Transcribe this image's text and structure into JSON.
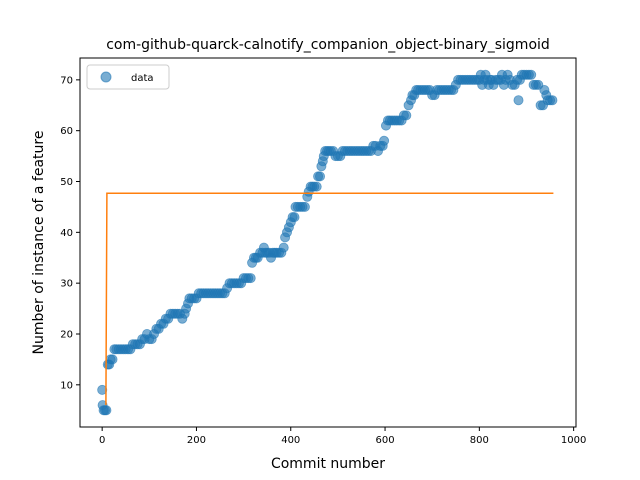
{
  "chart_data": {
    "type": "scatter",
    "title": "com-github-quarck-calnotify_companion_object-binary_sigmoid",
    "xlabel": "Commit number",
    "ylabel": "Number of instance of a feature",
    "xlim": [
      -47,
      1005
    ],
    "ylim": [
      1.7,
      74.3
    ],
    "xticks": [
      0,
      200,
      400,
      600,
      800,
      1000
    ],
    "yticks": [
      10,
      20,
      30,
      40,
      50,
      60,
      70
    ],
    "grid": false,
    "legend_position": "top-left",
    "series": [
      {
        "name": "data",
        "kind": "scatter",
        "color": "#1f77b4",
        "alpha": 0.6,
        "points": [
          [
            0,
            9
          ],
          [
            1,
            6
          ],
          [
            3,
            5
          ],
          [
            6,
            5
          ],
          [
            9,
            5
          ],
          [
            12,
            14
          ],
          [
            15,
            14
          ],
          [
            18,
            15
          ],
          [
            22,
            15
          ],
          [
            26,
            17
          ],
          [
            30,
            17
          ],
          [
            35,
            17
          ],
          [
            40,
            17
          ],
          [
            45,
            17
          ],
          [
            50,
            17
          ],
          [
            55,
            17
          ],
          [
            60,
            17
          ],
          [
            65,
            18
          ],
          [
            70,
            18
          ],
          [
            75,
            18
          ],
          [
            80,
            18
          ],
          [
            85,
            19
          ],
          [
            90,
            19
          ],
          [
            95,
            20
          ],
          [
            100,
            19
          ],
          [
            105,
            19
          ],
          [
            110,
            20
          ],
          [
            115,
            21
          ],
          [
            120,
            21
          ],
          [
            125,
            22
          ],
          [
            130,
            22
          ],
          [
            135,
            23
          ],
          [
            140,
            23
          ],
          [
            145,
            24
          ],
          [
            150,
            24
          ],
          [
            155,
            24
          ],
          [
            160,
            24
          ],
          [
            165,
            24
          ],
          [
            170,
            23
          ],
          [
            175,
            24
          ],
          [
            178,
            25
          ],
          [
            182,
            26
          ],
          [
            185,
            27
          ],
          [
            190,
            27
          ],
          [
            195,
            27
          ],
          [
            200,
            27
          ],
          [
            205,
            28
          ],
          [
            210,
            28
          ],
          [
            215,
            28
          ],
          [
            220,
            28
          ],
          [
            225,
            28
          ],
          [
            230,
            28
          ],
          [
            235,
            28
          ],
          [
            240,
            28
          ],
          [
            245,
            28
          ],
          [
            250,
            28
          ],
          [
            255,
            28
          ],
          [
            260,
            28
          ],
          [
            265,
            29
          ],
          [
            270,
            30
          ],
          [
            275,
            30
          ],
          [
            280,
            30
          ],
          [
            285,
            30
          ],
          [
            290,
            30
          ],
          [
            295,
            30
          ],
          [
            300,
            31
          ],
          [
            305,
            31
          ],
          [
            310,
            31
          ],
          [
            315,
            31
          ],
          [
            318,
            34
          ],
          [
            322,
            35
          ],
          [
            326,
            35
          ],
          [
            330,
            35
          ],
          [
            335,
            36
          ],
          [
            340,
            36
          ],
          [
            343,
            37
          ],
          [
            346,
            36
          ],
          [
            350,
            36
          ],
          [
            355,
            36
          ],
          [
            358,
            35
          ],
          [
            362,
            36
          ],
          [
            366,
            36
          ],
          [
            370,
            36
          ],
          [
            375,
            36
          ],
          [
            380,
            36
          ],
          [
            385,
            37
          ],
          [
            388,
            39
          ],
          [
            392,
            40
          ],
          [
            396,
            41
          ],
          [
            400,
            42
          ],
          [
            404,
            43
          ],
          [
            408,
            43
          ],
          [
            410,
            45
          ],
          [
            415,
            45
          ],
          [
            420,
            45
          ],
          [
            425,
            45
          ],
          [
            430,
            45
          ],
          [
            435,
            47
          ],
          [
            438,
            48
          ],
          [
            442,
            49
          ],
          [
            446,
            49
          ],
          [
            450,
            49
          ],
          [
            455,
            49
          ],
          [
            458,
            51
          ],
          [
            462,
            51
          ],
          [
            465,
            53
          ],
          [
            468,
            54
          ],
          [
            470,
            55
          ],
          [
            473,
            56
          ],
          [
            477,
            56
          ],
          [
            481,
            56
          ],
          [
            485,
            56
          ],
          [
            490,
            56
          ],
          [
            495,
            55
          ],
          [
            500,
            55
          ],
          [
            505,
            55
          ],
          [
            510,
            56
          ],
          [
            515,
            56
          ],
          [
            520,
            56
          ],
          [
            525,
            56
          ],
          [
            530,
            56
          ],
          [
            535,
            56
          ],
          [
            540,
            56
          ],
          [
            545,
            56
          ],
          [
            550,
            56
          ],
          [
            555,
            56
          ],
          [
            560,
            56
          ],
          [
            565,
            56
          ],
          [
            570,
            56
          ],
          [
            575,
            57
          ],
          [
            580,
            57
          ],
          [
            585,
            56
          ],
          [
            590,
            57
          ],
          [
            595,
            57
          ],
          [
            598,
            58
          ],
          [
            602,
            61
          ],
          [
            606,
            62
          ],
          [
            610,
            62
          ],
          [
            615,
            62
          ],
          [
            620,
            62
          ],
          [
            625,
            62
          ],
          [
            630,
            62
          ],
          [
            635,
            62
          ],
          [
            640,
            63
          ],
          [
            645,
            63
          ],
          [
            650,
            65
          ],
          [
            655,
            66
          ],
          [
            658,
            67
          ],
          [
            662,
            67
          ],
          [
            666,
            68
          ],
          [
            670,
            68
          ],
          [
            675,
            68
          ],
          [
            680,
            68
          ],
          [
            685,
            68
          ],
          [
            690,
            68
          ],
          [
            695,
            68
          ],
          [
            700,
            67
          ],
          [
            705,
            67
          ],
          [
            710,
            68
          ],
          [
            715,
            68
          ],
          [
            720,
            68
          ],
          [
            725,
            68
          ],
          [
            730,
            68
          ],
          [
            735,
            68
          ],
          [
            740,
            68
          ],
          [
            745,
            68
          ],
          [
            750,
            69
          ],
          [
            755,
            70
          ],
          [
            760,
            70
          ],
          [
            765,
            70
          ],
          [
            770,
            70
          ],
          [
            775,
            70
          ],
          [
            780,
            70
          ],
          [
            785,
            70
          ],
          [
            790,
            70
          ],
          [
            795,
            70
          ],
          [
            800,
            70
          ],
          [
            803,
            71
          ],
          [
            806,
            69
          ],
          [
            810,
            70
          ],
          [
            813,
            71
          ],
          [
            816,
            70
          ],
          [
            820,
            69
          ],
          [
            823,
            70
          ],
          [
            826,
            70
          ],
          [
            830,
            69
          ],
          [
            835,
            70
          ],
          [
            840,
            70
          ],
          [
            845,
            70
          ],
          [
            848,
            71
          ],
          [
            852,
            69
          ],
          [
            856,
            70
          ],
          [
            860,
            71
          ],
          [
            865,
            70
          ],
          [
            870,
            69
          ],
          [
            875,
            69
          ],
          [
            880,
            70
          ],
          [
            883,
            66
          ],
          [
            886,
            70
          ],
          [
            890,
            71
          ],
          [
            895,
            71
          ],
          [
            900,
            71
          ],
          [
            905,
            71
          ],
          [
            910,
            71
          ],
          [
            915,
            69
          ],
          [
            920,
            69
          ],
          [
            925,
            69
          ],
          [
            930,
            65
          ],
          [
            935,
            65
          ],
          [
            938,
            68
          ],
          [
            942,
            67
          ],
          [
            945,
            66
          ],
          [
            950,
            66
          ],
          [
            955,
            66
          ]
        ]
      },
      {
        "name": "",
        "kind": "line",
        "color": "#ff7f0e",
        "points": [
          [
            8,
            6
          ],
          [
            10,
            47.7
          ],
          [
            957,
            47.7
          ]
        ]
      }
    ]
  }
}
